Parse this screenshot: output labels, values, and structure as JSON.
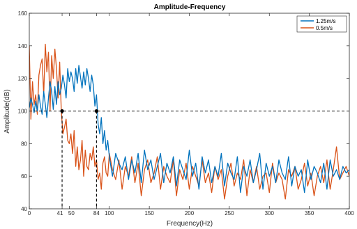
{
  "chart_data": {
    "type": "line",
    "title": "Amplitude-Frequency",
    "xlabel": "Frequency(Hz)",
    "ylabel": "Amplitude(dB)",
    "xlim": [
      0,
      400
    ],
    "ylim": [
      40,
      160
    ],
    "xticks": [
      0,
      41,
      50,
      84,
      100,
      150,
      200,
      250,
      300,
      350,
      400
    ],
    "xtick_labels": [
      "0",
      "41",
      "50",
      "84",
      "100",
      "150",
      "200",
      "250",
      "300",
      "350",
      "400"
    ],
    "yticks": [
      40,
      60,
      80,
      100,
      120,
      140,
      160
    ],
    "ytick_labels": [
      "40",
      "60",
      "80",
      "100",
      "120",
      "140",
      "160"
    ],
    "grid": false,
    "legend_position": "top-right",
    "reference": {
      "threshold_y": 100,
      "markers": [
        {
          "x": 41,
          "y": 100
        },
        {
          "x": 84,
          "y": 100
        }
      ]
    },
    "series": [
      {
        "name": "1.25m/s",
        "color": "#0072bd",
        "x": [
          0,
          2,
          4,
          6,
          8,
          10,
          12,
          14,
          16,
          18,
          20,
          22,
          24,
          26,
          28,
          30,
          32,
          34,
          36,
          38,
          40,
          42,
          44,
          46,
          48,
          50,
          52,
          54,
          56,
          58,
          60,
          62,
          64,
          66,
          68,
          70,
          72,
          74,
          76,
          78,
          80,
          82,
          84,
          86,
          88,
          90,
          92,
          94,
          96,
          98,
          100,
          104,
          108,
          112,
          116,
          120,
          124,
          128,
          132,
          136,
          140,
          144,
          148,
          152,
          156,
          160,
          164,
          168,
          172,
          176,
          180,
          184,
          188,
          192,
          196,
          200,
          204,
          208,
          212,
          216,
          220,
          224,
          228,
          232,
          236,
          240,
          244,
          248,
          252,
          256,
          260,
          264,
          268,
          272,
          276,
          280,
          284,
          288,
          292,
          296,
          300,
          304,
          308,
          312,
          316,
          320,
          324,
          328,
          332,
          336,
          340,
          344,
          348,
          352,
          356,
          360,
          364,
          368,
          372,
          376,
          380,
          384,
          388,
          392,
          396,
          400
        ],
        "y": [
          102,
          108,
          104,
          99,
          106,
          100,
          110,
          103,
          98,
          112,
          104,
          96,
          108,
          118,
          112,
          101,
          115,
          104,
          118,
          110,
          114,
          122,
          116,
          108,
          126,
          118,
          124,
          120,
          112,
          126,
          117,
          128,
          121,
          114,
          124,
          116,
          126,
          120,
          112,
          122,
          116,
          103,
          110,
          92,
          86,
          96,
          80,
          88,
          76,
          82,
          72,
          60,
          74,
          68,
          64,
          72,
          58,
          70,
          62,
          74,
          56,
          76,
          64,
          70,
          58,
          66,
          74,
          56,
          68,
          62,
          72,
          54,
          70,
          64,
          58,
          76,
          60,
          68,
          52,
          72,
          62,
          70,
          56,
          66,
          60,
          74,
          54,
          68,
          62,
          58,
          72,
          50,
          66,
          60,
          70,
          56,
          64,
          74,
          52,
          68,
          60,
          66,
          56,
          70,
          62,
          58,
          72,
          54,
          66,
          60,
          64,
          50,
          70,
          58,
          66,
          62,
          56,
          68,
          52,
          70,
          60,
          64,
          58,
          66,
          62,
          64
        ]
      },
      {
        "name": "0.5m/s",
        "color": "#d95319",
        "x": [
          0,
          2,
          4,
          6,
          8,
          10,
          12,
          14,
          16,
          18,
          20,
          22,
          24,
          26,
          28,
          30,
          32,
          34,
          36,
          38,
          40,
          42,
          44,
          46,
          48,
          50,
          52,
          54,
          56,
          58,
          60,
          62,
          64,
          66,
          68,
          70,
          72,
          74,
          76,
          78,
          80,
          82,
          84,
          86,
          88,
          90,
          92,
          94,
          96,
          98,
          100,
          104,
          108,
          112,
          116,
          120,
          124,
          128,
          132,
          136,
          140,
          144,
          148,
          152,
          156,
          160,
          164,
          168,
          172,
          176,
          180,
          184,
          188,
          192,
          196,
          200,
          204,
          208,
          212,
          216,
          220,
          224,
          228,
          232,
          236,
          240,
          244,
          248,
          252,
          256,
          260,
          264,
          268,
          272,
          276,
          280,
          284,
          288,
          292,
          296,
          300,
          304,
          308,
          312,
          316,
          320,
          324,
          328,
          332,
          336,
          340,
          344,
          348,
          352,
          356,
          360,
          364,
          368,
          372,
          376,
          380,
          384,
          388,
          392,
          396,
          400
        ],
        "y": [
          140,
          95,
          118,
          104,
          110,
          98,
          122,
          128,
          132,
          110,
          141,
          124,
          136,
          100,
          134,
          120,
          138,
          126,
          108,
          130,
          100,
          86,
          90,
          95,
          82,
          80,
          86,
          74,
          88,
          66,
          78,
          64,
          70,
          82,
          60,
          76,
          66,
          64,
          74,
          70,
          78,
          66,
          70,
          58,
          62,
          52,
          68,
          72,
          62,
          60,
          74,
          64,
          58,
          70,
          52,
          66,
          60,
          72,
          56,
          68,
          48,
          64,
          70,
          56,
          62,
          72,
          52,
          66,
          60,
          56,
          70,
          48,
          64,
          58,
          68,
          52,
          66,
          60,
          54,
          70,
          56,
          62,
          50,
          66,
          58,
          64,
          46,
          60,
          68,
          54,
          62,
          58,
          70,
          48,
          64,
          56,
          66,
          52,
          60,
          62,
          50,
          68,
          56,
          62,
          58,
          46,
          64,
          60,
          66,
          52,
          58,
          68,
          54,
          62,
          48,
          60,
          66,
          56,
          70,
          52,
          64,
          78,
          58,
          62,
          66,
          60
        ]
      }
    ]
  }
}
